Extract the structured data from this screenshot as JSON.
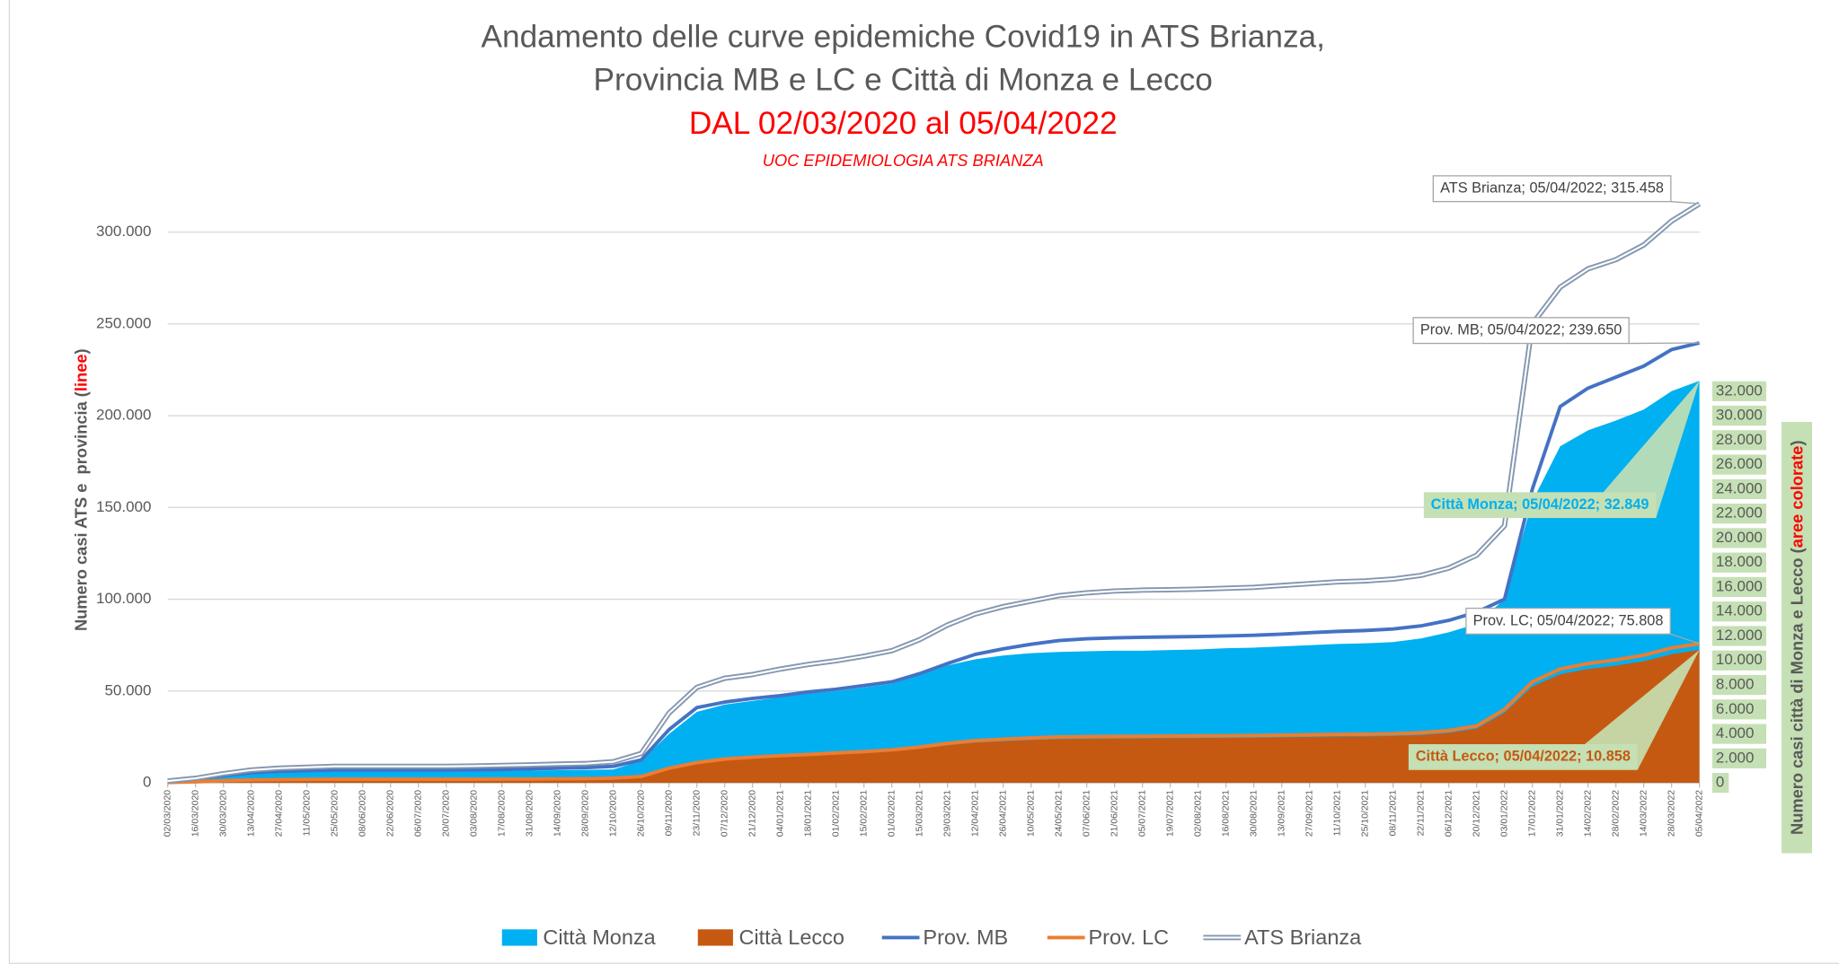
{
  "chart_data": {
    "type": "line",
    "title": "Andamento delle curve epidemiche Covid19 in ATS Brianza,",
    "title_line2": "Provincia MB e LC e Città di Monza e Lecco",
    "subtitle": "DAL 02/03/2020 al 05/04/2022",
    "source": "UOC EPIDEMIOLOGIA ATS BRIANZA",
    "y_label": [
      "Numero casi ATS e  provincia (",
      "linee",
      ")"
    ],
    "y2_label": [
      "Numero casi città di Monza e Lecco (",
      "aree colorate",
      ")"
    ],
    "categories": [
      "02/03/2020",
      "16/03/2020",
      "30/03/2020",
      "13/04/2020",
      "27/04/2020",
      "11/05/2020",
      "25/05/2020",
      "08/06/2020",
      "22/06/2020",
      "06/07/2020",
      "20/07/2020",
      "03/08/2020",
      "17/08/2020",
      "31/08/2020",
      "14/09/2020",
      "28/09/2020",
      "12/10/2020",
      "26/10/2020",
      "09/11/2020",
      "23/11/2020",
      "07/12/2020",
      "21/12/2020",
      "04/01/2021",
      "18/01/2021",
      "01/02/2021",
      "15/02/2021",
      "01/03/2021",
      "15/03/2021",
      "29/03/2021",
      "12/04/2021",
      "26/04/2021",
      "10/05/2021",
      "24/05/2021",
      "07/06/2021",
      "21/06/2021",
      "05/07/2021",
      "19/07/2021",
      "02/08/2021",
      "16/08/2021",
      "30/08/2021",
      "13/09/2021",
      "27/09/2021",
      "11/10/2021",
      "25/10/2021",
      "08/11/2021",
      "22/11/2021",
      "06/12/2021",
      "20/12/2021",
      "03/01/2022",
      "17/01/2022",
      "31/01/2022",
      "14/02/2022",
      "28/02/2022",
      "14/03/2022",
      "28/03/2022",
      "05/04/2022"
    ],
    "series": [
      {
        "name": "Città Monza",
        "kind": "area",
        "axis": "y2",
        "color": "#00b0f0",
        "data_label": "Città Monza; 05/04/2022; 32.849",
        "values": [
          100,
          300,
          600,
          800,
          900,
          950,
          950,
          950,
          950,
          950,
          950,
          960,
          980,
          1000,
          1030,
          1060,
          1100,
          1800,
          4000,
          5800,
          6400,
          6700,
          7000,
          7300,
          7500,
          7800,
          8100,
          8800,
          9600,
          10100,
          10400,
          10600,
          10700,
          10750,
          10800,
          10800,
          10850,
          10900,
          11000,
          11050,
          11150,
          11250,
          11350,
          11400,
          11500,
          11800,
          12300,
          13000,
          15000,
          23000,
          27500,
          28800,
          29600,
          30500,
          32000,
          32849
        ]
      },
      {
        "name": "Città Lecco",
        "kind": "area",
        "axis": "y2",
        "color": "#c65911",
        "data_label": "Città Lecco; 05/04/2022; 10.858",
        "values": [
          30,
          90,
          170,
          230,
          260,
          270,
          290,
          290,
          290,
          290,
          290,
          290,
          290,
          300,
          310,
          330,
          370,
          500,
          1150,
          1570,
          1860,
          2000,
          2120,
          2220,
          2330,
          2430,
          2570,
          2790,
          3070,
          3290,
          3400,
          3500,
          3570,
          3600,
          3620,
          3630,
          3650,
          3660,
          3670,
          3690,
          3720,
          3750,
          3780,
          3790,
          3830,
          3900,
          4080,
          4430,
          5720,
          7870,
          8870,
          9300,
          9580,
          9940,
          10510,
          10858
        ]
      },
      {
        "name": "Prov. MB",
        "kind": "line",
        "color": "#4472c4",
        "data_label": "Prov. MB; 05/04/2022; 239.650",
        "values": [
          800,
          2000,
          4000,
          5500,
          6300,
          6700,
          7000,
          7000,
          7000,
          7000,
          7000,
          7100,
          7300,
          7600,
          8000,
          8300,
          9000,
          12500,
          29000,
          41000,
          44000,
          46000,
          47500,
          49500,
          51000,
          53000,
          55000,
          59500,
          65000,
          70000,
          73000,
          75500,
          77500,
          78500,
          79000,
          79300,
          79500,
          79700,
          80000,
          80400,
          81000,
          81800,
          82500,
          83000,
          83800,
          85500,
          88500,
          93000,
          100000,
          160000,
          205000,
          215000,
          221000,
          227000,
          236000,
          239650
        ]
      },
      {
        "name": "Prov. LC",
        "kind": "line",
        "color": "#ed7d31",
        "data_label": "Prov. LC; 05/04/2022; 75.808",
        "values": [
          200,
          600,
          1200,
          1600,
          1800,
          1900,
          2000,
          2000,
          2000,
          2000,
          2000,
          2000,
          2050,
          2100,
          2200,
          2300,
          2600,
          3500,
          8000,
          11000,
          13000,
          14000,
          14800,
          15500,
          16300,
          17000,
          18000,
          19500,
          21500,
          23000,
          23800,
          24500,
          25000,
          25200,
          25300,
          25400,
          25500,
          25600,
          25700,
          25800,
          26000,
          26200,
          26400,
          26500,
          26800,
          27300,
          28500,
          31000,
          40000,
          55000,
          62000,
          65000,
          67000,
          69500,
          73500,
          75808
        ]
      },
      {
        "name": "ATS Brianza",
        "kind": "line",
        "style": "double",
        "color": "#8497b0",
        "data_label": "ATS Brianza; 05/04/2022; 315.458",
        "values": [
          1000,
          2500,
          5000,
          7000,
          8000,
          8500,
          9000,
          9000,
          9000,
          9000,
          9000,
          9200,
          9500,
          9800,
          10200,
          10500,
          11500,
          16000,
          38000,
          52000,
          57000,
          59000,
          62000,
          64500,
          66500,
          69000,
          72000,
          78000,
          86000,
          92000,
          96000,
          99000,
          102000,
          103500,
          104500,
          105000,
          105200,
          105500,
          106000,
          106500,
          107500,
          108500,
          109500,
          110000,
          111000,
          113000,
          117000,
          124000,
          140000,
          250000,
          270000,
          280000,
          285000,
          293000,
          306000,
          315458
        ]
      }
    ],
    "ylim": [
      0,
      320000
    ],
    "yticks": [
      0,
      {
        "value": 50000,
        "label": "50.000"
      },
      {
        "value": 100000,
        "label": "100.000"
      },
      {
        "value": 150000,
        "label": "150.000"
      },
      {
        "value": 200000,
        "label": "200.000"
      },
      {
        "value": 250000,
        "label": "250.000"
      },
      {
        "value": 300000,
        "label": "300.000"
      }
    ],
    "y2lim": [
      0,
      48000
    ],
    "y2ticks": [
      0,
      {
        "value": 2000,
        "label": "2.000"
      },
      {
        "value": 4000,
        "label": "4.000"
      },
      {
        "value": 6000,
        "label": "6.000"
      },
      {
        "value": 8000,
        "label": "8.000"
      },
      {
        "value": 10000,
        "label": "10.000"
      },
      {
        "value": 12000,
        "label": "12.000"
      },
      {
        "value": 14000,
        "label": "14.000"
      },
      {
        "value": 16000,
        "label": "16.000"
      },
      {
        "value": 18000,
        "label": "18.000"
      },
      {
        "value": 20000,
        "label": "20.000"
      },
      {
        "value": 22000,
        "label": "22.000"
      },
      {
        "value": 24000,
        "label": "24.000"
      },
      {
        "value": 26000,
        "label": "26.000"
      },
      {
        "value": 28000,
        "label": "28.000"
      },
      {
        "value": 30000,
        "label": "30.000"
      },
      {
        "value": 32000,
        "label": "32.000"
      }
    ],
    "grid": true,
    "legend": "bottom"
  }
}
